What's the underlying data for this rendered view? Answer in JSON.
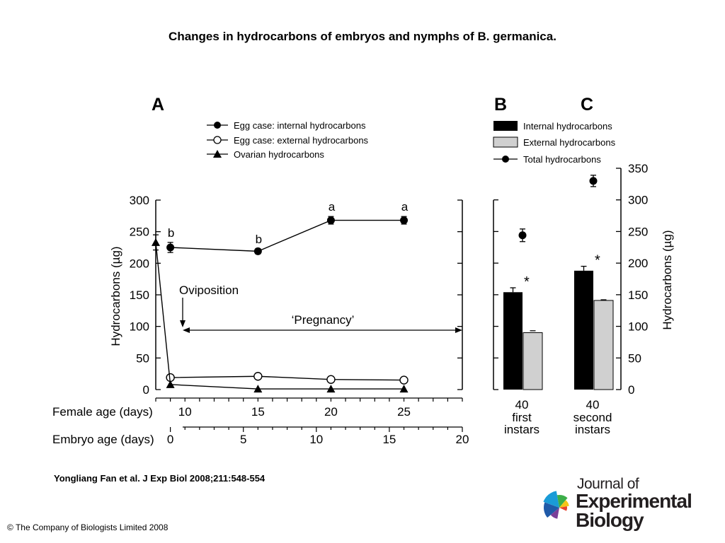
{
  "title": "Changes in hydrocarbons of embryos and nymphs of B. germanica.",
  "citation": "Yongliang Fan et al. J Exp Biol 2008;211:548-554",
  "copyright": "© The Company of Biologists Limited 2008",
  "logo": {
    "line1": "Journal of",
    "line2": "Experimental",
    "line3": "Biology",
    "colors": [
      "#1a9bd7",
      "#1f5aa8",
      "#3cae49",
      "#f5c518",
      "#e8432f",
      "#7a3f98"
    ]
  },
  "chart_data": [
    {
      "panel": "A",
      "type": "line",
      "ylabel": "Hydrocarbons (µg)",
      "ylim": [
        0,
        300
      ],
      "yticks": [
        0,
        50,
        100,
        150,
        200,
        250,
        300
      ],
      "x_axes": [
        {
          "label": "Female age (days)",
          "ticks": [
            10,
            15,
            20,
            25
          ]
        },
        {
          "label": "Embryo age (days)",
          "ticks": [
            0,
            5,
            10,
            15,
            20
          ]
        }
      ],
      "xlim_female_age": [
        8,
        29
      ],
      "series": [
        {
          "name": "Egg case: internal hydrocarbons",
          "marker": "filled-circle",
          "x": [
            9,
            15,
            20,
            25
          ],
          "y": [
            225,
            219,
            268,
            268
          ],
          "err": [
            8,
            4,
            6,
            6
          ],
          "labels": [
            "b",
            "b",
            "a",
            "a"
          ]
        },
        {
          "name": "Egg case: external hydrocarbons",
          "marker": "open-circle",
          "x": [
            9,
            15,
            20,
            25
          ],
          "y": [
            19,
            21,
            16,
            15
          ],
          "err": [
            0,
            0,
            0,
            0
          ]
        },
        {
          "name": "Ovarian hydrocarbons",
          "marker": "filled-triangle",
          "x": [
            8,
            9,
            15,
            20,
            25
          ],
          "y": [
            233,
            8,
            1,
            1,
            1
          ],
          "err": [
            12,
            0,
            0,
            0,
            0
          ]
        }
      ],
      "annotations": {
        "oviposition": "Oviposition",
        "pregnancy": "‘Pregnancy’"
      }
    },
    {
      "panels": [
        "B",
        "C"
      ],
      "type": "bar",
      "ylabel": "Hydrocarbons (µg)",
      "ylim": [
        0,
        350
      ],
      "yticks": [
        0,
        50,
        100,
        150,
        200,
        250,
        300,
        350
      ],
      "categories": [
        {
          "count": "40",
          "line1": "first",
          "line2": "instars"
        },
        {
          "count": "40",
          "line1": "second",
          "line2": "instars"
        }
      ],
      "series": [
        {
          "name": "Internal hydrocarbons",
          "color": "#000000",
          "values": [
            154,
            188
          ],
          "err": [
            7,
            7
          ]
        },
        {
          "name": "External hydrocarbons",
          "color": "#d0d0d0",
          "values": [
            90,
            141
          ],
          "err": [
            3,
            1
          ]
        },
        {
          "name": "Total hydrocarbons",
          "marker": "filled-circle",
          "values": [
            244,
            330
          ],
          "err": [
            10,
            9
          ]
        }
      ],
      "significance": [
        "*",
        "*"
      ]
    }
  ]
}
